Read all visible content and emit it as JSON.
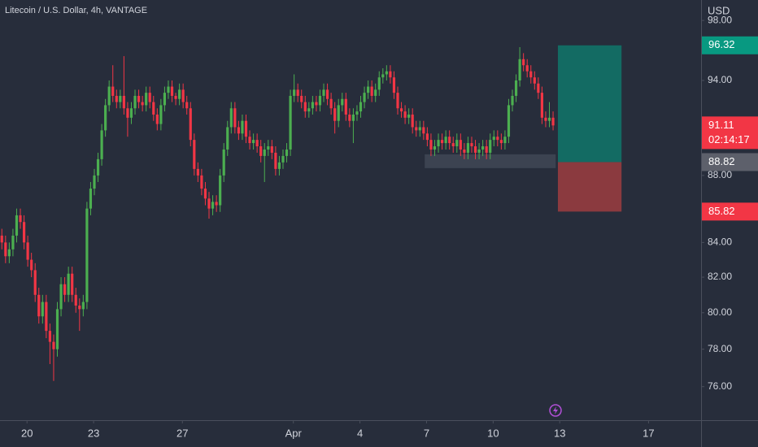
{
  "chart_data": {
    "type": "candlestick",
    "title": "Litecoin / U.S. Dollar, 4h, VANTAGE",
    "y_axis_label": "USD",
    "log_scale": true,
    "grid": false,
    "up_color": "#4caf50",
    "down_color": "#f23645",
    "xlim": [
      -0.5,
      189
    ],
    "ylim": [
      74.25,
      99.4
    ],
    "xticks": [
      {
        "value": 6.8,
        "label": "20"
      },
      {
        "value": 24.8,
        "label": "23"
      },
      {
        "value": 48.8,
        "label": "27"
      },
      {
        "value": 78.8,
        "label": "Apr"
      },
      {
        "value": 96.8,
        "label": "4"
      },
      {
        "value": 114.8,
        "label": "7"
      },
      {
        "value": 132.8,
        "label": "10"
      },
      {
        "value": 150.8,
        "label": "13"
      },
      {
        "value": 174.8,
        "label": "17"
      }
    ],
    "yticks": [
      {
        "value": 76,
        "label": "76.00"
      },
      {
        "value": 78,
        "label": "78.00"
      },
      {
        "value": 80,
        "label": "80.00"
      },
      {
        "value": 82,
        "label": "82.00"
      },
      {
        "value": 84,
        "label": "84.00"
      },
      {
        "value": 88,
        "label": "88.00"
      },
      {
        "value": 94,
        "label": "94.00"
      },
      {
        "value": 98,
        "label": "98.00"
      }
    ],
    "open": [
      84.4,
      84.0,
      83.2,
      83.6,
      84.4,
      85.6,
      85.2,
      84.0,
      83.0,
      82.4,
      81.0,
      79.8,
      80.6,
      79.0,
      78.4,
      78.0,
      80.2,
      81.6,
      81.0,
      82.2,
      81.0,
      80.4,
      80.2,
      80.6,
      86.0,
      87.2,
      88.0,
      89.0,
      90.8,
      92.4,
      93.6,
      93.0,
      92.6,
      93.0,
      92.2,
      91.6,
      92.2,
      93.0,
      92.6,
      92.4,
      93.2,
      92.6,
      91.8,
      91.2,
      92.4,
      93.2,
      93.6,
      93.0,
      92.8,
      93.4,
      92.6,
      92.2,
      90.2,
      88.4,
      88.0,
      87.2,
      86.6,
      86.0,
      86.4,
      86.2,
      88.0,
      89.6,
      91.0,
      92.2,
      91.0,
      90.6,
      91.4,
      90.4,
      90.0,
      90.2,
      89.8,
      89.2,
      89.6,
      89.8,
      89.4,
      88.4,
      88.8,
      89.2,
      89.6,
      93.0,
      93.4,
      93.0,
      92.6,
      92.0,
      92.2,
      92.6,
      92.4,
      93.0,
      93.4,
      92.8,
      92.2,
      91.4,
      92.4,
      92.8,
      91.8,
      91.4,
      91.8,
      92.0,
      92.6,
      93.2,
      93.6,
      93.0,
      93.4,
      94.2,
      94.4,
      94.6,
      94.2,
      93.2,
      92.2,
      92.0,
      91.6,
      91.8,
      91.0,
      90.8,
      91.0,
      90.6,
      90.2,
      89.6,
      89.8,
      90.2,
      90.0,
      90.4,
      90.0,
      89.8,
      90.2,
      89.6,
      89.4,
      90.0,
      89.8,
      89.4,
      89.6,
      89.8,
      89.4,
      90.2,
      90.4,
      90.2,
      90.0,
      90.4,
      92.4,
      93.0,
      94.0,
      95.4,
      95.0,
      94.6,
      94.2,
      93.8,
      93.2,
      91.6,
      91.4,
      91.6
    ],
    "high": [
      84.8,
      84.4,
      84.0,
      84.8,
      86.0,
      86.0,
      85.6,
      84.4,
      83.4,
      82.8,
      81.4,
      81.0,
      81.0,
      79.4,
      78.8,
      80.6,
      82.0,
      82.0,
      82.6,
      82.6,
      81.4,
      80.8,
      81.0,
      86.4,
      87.6,
      88.4,
      89.4,
      91.2,
      92.8,
      94.0,
      95.0,
      93.4,
      93.4,
      95.6,
      92.6,
      92.6,
      93.4,
      93.4,
      93.0,
      93.6,
      93.6,
      93.0,
      92.2,
      92.8,
      93.6,
      94.0,
      94.0,
      93.2,
      93.8,
      93.8,
      93.0,
      92.6,
      90.6,
      88.8,
      88.4,
      87.6,
      87.0,
      86.8,
      86.8,
      88.4,
      90.0,
      91.4,
      92.6,
      92.6,
      91.4,
      91.8,
      91.8,
      90.8,
      90.6,
      90.6,
      90.2,
      90.0,
      90.2,
      90.2,
      89.8,
      89.2,
      89.6,
      90.0,
      93.4,
      94.4,
      93.8,
      93.4,
      93.0,
      92.6,
      93.0,
      93.0,
      93.4,
      93.8,
      93.8,
      93.2,
      92.6,
      92.8,
      93.2,
      93.2,
      92.2,
      92.2,
      92.4,
      93.0,
      93.6,
      94.0,
      94.0,
      93.8,
      94.6,
      94.8,
      95.0,
      95.0,
      94.6,
      93.6,
      92.6,
      92.4,
      92.2,
      92.2,
      91.4,
      91.4,
      91.4,
      91.0,
      90.6,
      90.2,
      90.6,
      90.6,
      90.8,
      90.8,
      90.4,
      90.6,
      90.6,
      90.0,
      90.4,
      90.4,
      90.2,
      90.0,
      90.2,
      90.2,
      90.6,
      90.8,
      90.8,
      90.6,
      90.8,
      92.8,
      93.4,
      94.4,
      96.2,
      95.8,
      95.4,
      95.0,
      94.6,
      94.2,
      93.6,
      92.0,
      92.6,
      92.0
    ],
    "low": [
      83.6,
      82.8,
      82.8,
      83.2,
      84.0,
      84.8,
      83.6,
      82.6,
      82.0,
      80.6,
      79.4,
      79.4,
      78.6,
      77.2,
      76.3,
      77.6,
      79.8,
      80.6,
      80.6,
      80.6,
      80.0,
      79.0,
      79.8,
      80.2,
      85.6,
      86.8,
      87.6,
      88.6,
      90.4,
      92.0,
      92.6,
      92.2,
      92.2,
      91.8,
      90.4,
      91.2,
      91.8,
      92.2,
      92.0,
      92.0,
      92.2,
      91.4,
      90.8,
      90.8,
      92.0,
      92.8,
      92.6,
      92.4,
      92.4,
      92.2,
      91.8,
      89.8,
      88.0,
      87.6,
      86.8,
      86.2,
      85.4,
      85.6,
      85.8,
      85.8,
      87.6,
      89.2,
      90.6,
      90.6,
      90.2,
      90.2,
      90.0,
      89.6,
      89.6,
      89.4,
      88.8,
      87.6,
      89.2,
      89.0,
      88.0,
      88.0,
      88.4,
      88.8,
      89.2,
      92.6,
      92.6,
      92.2,
      91.6,
      91.6,
      91.8,
      92.0,
      92.0,
      92.6,
      92.4,
      91.8,
      90.6,
      91.0,
      92.0,
      91.4,
      91.0,
      90.0,
      91.4,
      91.6,
      92.2,
      92.8,
      92.6,
      92.6,
      93.0,
      93.8,
      94.0,
      93.8,
      92.8,
      91.8,
      91.6,
      91.2,
      91.2,
      90.6,
      90.4,
      90.4,
      90.2,
      89.8,
      89.2,
      89.2,
      89.4,
      89.6,
      89.6,
      89.6,
      89.4,
      89.4,
      89.2,
      89.0,
      89.0,
      89.4,
      89.0,
      89.0,
      89.2,
      89.0,
      89.0,
      89.8,
      89.8,
      89.6,
      89.6,
      90.0,
      92.0,
      92.6,
      93.6,
      94.6,
      94.2,
      93.8,
      93.4,
      92.8,
      91.2,
      91.0,
      91.0,
      90.8
    ],
    "close": [
      84.0,
      83.2,
      83.6,
      84.4,
      85.6,
      85.2,
      84.0,
      83.0,
      82.4,
      81.0,
      79.8,
      80.6,
      79.0,
      78.4,
      78.0,
      80.2,
      81.6,
      81.0,
      82.2,
      81.0,
      80.4,
      80.2,
      80.6,
      86.0,
      87.2,
      88.0,
      89.0,
      90.8,
      92.4,
      93.6,
      93.0,
      92.6,
      93.0,
      92.2,
      91.6,
      92.2,
      93.0,
      92.6,
      92.4,
      93.2,
      92.6,
      91.8,
      91.2,
      92.4,
      93.2,
      93.6,
      93.0,
      92.8,
      93.4,
      92.6,
      92.2,
      90.2,
      88.4,
      88.0,
      87.2,
      86.6,
      86.0,
      86.4,
      86.2,
      88.0,
      89.6,
      91.0,
      92.2,
      91.0,
      90.6,
      91.4,
      90.4,
      90.0,
      90.2,
      89.8,
      89.2,
      89.6,
      89.8,
      89.4,
      88.4,
      88.8,
      89.2,
      89.6,
      93.0,
      93.4,
      93.0,
      92.6,
      92.0,
      92.2,
      92.6,
      92.4,
      93.0,
      93.4,
      92.8,
      92.2,
      91.4,
      92.4,
      92.8,
      91.8,
      91.4,
      91.8,
      92.0,
      92.6,
      93.2,
      93.6,
      93.0,
      93.4,
      94.2,
      94.4,
      94.6,
      94.2,
      93.2,
      92.2,
      92.0,
      91.6,
      91.8,
      91.0,
      90.8,
      91.0,
      90.6,
      90.2,
      89.6,
      89.8,
      90.2,
      90.0,
      90.4,
      90.0,
      89.8,
      90.2,
      89.6,
      89.4,
      90.0,
      89.8,
      89.4,
      89.6,
      89.8,
      89.4,
      90.2,
      90.4,
      90.2,
      90.0,
      90.4,
      92.4,
      93.0,
      94.0,
      95.4,
      95.0,
      94.6,
      94.2,
      93.8,
      93.2,
      91.6,
      91.4,
      91.6,
      91.11
    ],
    "countdown": "02:14:17",
    "zone": {
      "x": [
        114.3,
        149.7
      ],
      "range": [
        88.45,
        89.3
      ]
    },
    "position": {
      "x": [
        150.3,
        167.5
      ],
      "target": 96.32,
      "entry": 88.82,
      "stop": 85.82,
      "target_color": "#136b63",
      "stop_color": "#8b3a3f"
    }
  }
}
